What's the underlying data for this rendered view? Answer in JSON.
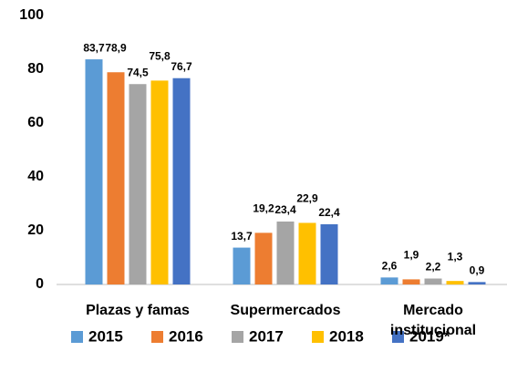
{
  "chart_data": {
    "type": "bar",
    "categories": [
      "Plazas y famas",
      "Supermercados",
      "Mercado institucional"
    ],
    "series": [
      {
        "name": "2015",
        "color": "#5b9bd5",
        "values": [
          83.7,
          13.7,
          2.6
        ],
        "value_labels": [
          "83,7",
          "13,7",
          "2,6"
        ]
      },
      {
        "name": "2016",
        "color": "#ed7d31",
        "values": [
          78.9,
          19.2,
          1.9
        ],
        "value_labels": [
          "78,9",
          "19,2",
          "1,9"
        ]
      },
      {
        "name": "2017",
        "color": "#a5a5a5",
        "values": [
          74.5,
          23.4,
          2.2
        ],
        "value_labels": [
          "74,5",
          "23,4",
          "2,2"
        ]
      },
      {
        "name": "2018",
        "color": "#ffc000",
        "values": [
          75.8,
          22.9,
          1.3
        ],
        "value_labels": [
          "75,8",
          "22,9",
          "1,3"
        ]
      },
      {
        "name": "2019*",
        "color": "#4472c4",
        "values": [
          76.7,
          22.4,
          0.9
        ],
        "value_labels": [
          "76,7",
          "22,4",
          "0,9"
        ]
      }
    ],
    "ylim": [
      0,
      100
    ],
    "yticks": [
      0,
      20,
      40,
      60,
      80,
      100
    ],
    "grid": false,
    "legend": "bottom"
  }
}
